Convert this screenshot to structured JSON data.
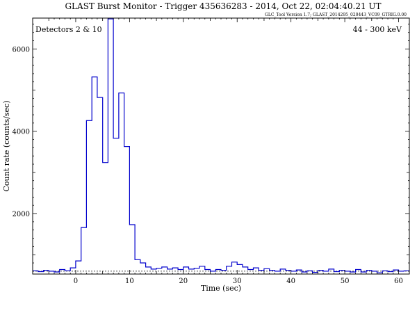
{
  "chart_data": {
    "type": "line",
    "step": true,
    "title": "GLAST Burst Monitor  -  Trigger 435636283  -  2014, Oct 22, 02:04:40.21 UT",
    "subtitle": "GLC_Tool Version 1.7; GLAST_2014295_020443_VC09_GTRIG.0.00",
    "xlabel": "Time (sec)",
    "ylabel": "Count rate (counts/sec)",
    "xlim": [
      -8,
      62
    ],
    "ylim": [
      530,
      6750
    ],
    "xticks": [
      0,
      10,
      20,
      30,
      40,
      50,
      60
    ],
    "yticks": [
      2000,
      4000,
      6000
    ],
    "annotation_left": "Detectors 2 & 10",
    "annotation_right": "44 - 300 keV",
    "background_level": 600,
    "line_color": "#0000cc",
    "bin_width": 1,
    "series": [
      {
        "x": [
          -8,
          -7,
          -6,
          -5,
          -4,
          -3,
          -2,
          -1,
          0,
          1,
          2,
          3,
          4,
          5,
          6,
          7,
          8,
          9,
          10,
          11,
          12,
          13,
          14,
          15,
          16,
          17,
          18,
          19,
          20,
          21,
          22,
          23,
          24,
          25,
          26,
          27,
          28,
          29,
          30,
          31,
          32,
          33,
          34,
          35,
          36,
          37,
          38,
          39,
          40,
          41,
          42,
          43,
          44,
          45,
          46,
          47,
          48,
          49,
          50,
          51,
          52,
          53,
          54,
          55,
          56,
          57,
          58,
          59,
          60,
          61
        ],
        "values": [
          610,
          590,
          620,
          600,
          580,
          640,
          610,
          680,
          850,
          1660,
          4260,
          5320,
          4820,
          3240,
          6730,
          3830,
          4930,
          3630,
          1730,
          880,
          800,
          700,
          650,
          670,
          700,
          650,
          680,
          640,
          700,
          650,
          670,
          720,
          640,
          600,
          640,
          620,
          720,
          820,
          760,
          700,
          640,
          680,
          620,
          660,
          620,
          600,
          650,
          620,
          600,
          630,
          580,
          610,
          570,
          620,
          600,
          650,
          590,
          620,
          600,
          580,
          640,
          580,
          620,
          600,
          560,
          610,
          590,
          630,
          600,
          610
        ]
      }
    ]
  }
}
